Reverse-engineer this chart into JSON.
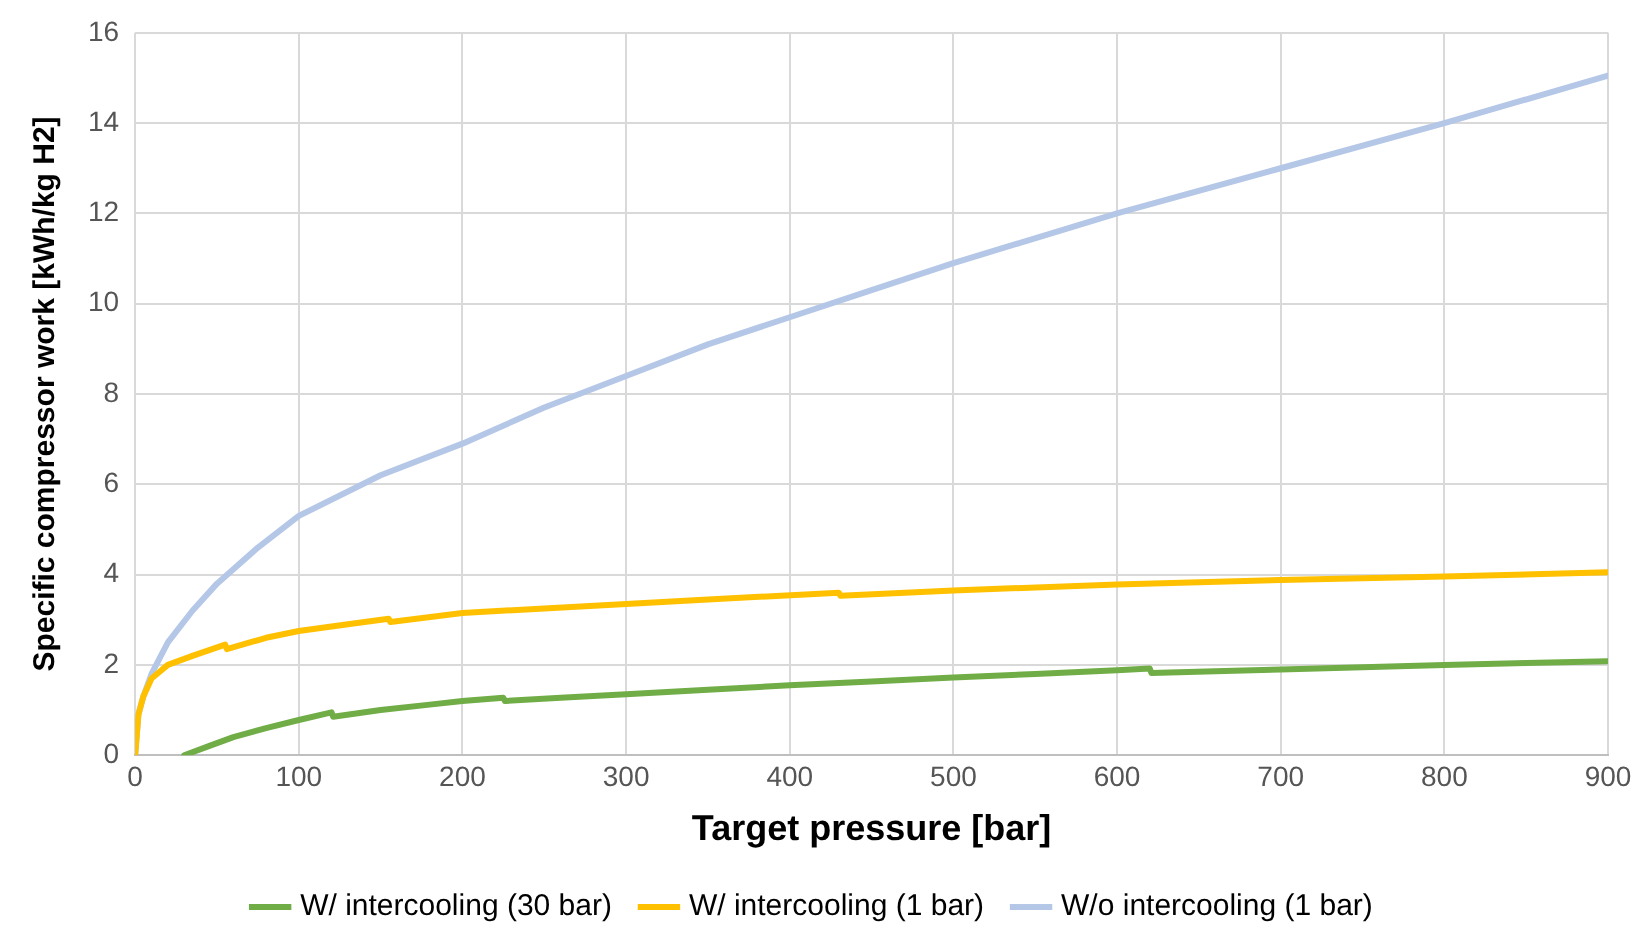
{
  "chart_data": {
    "type": "line",
    "xlabel": "Target pressure [bar]",
    "ylabel": "Specific compressor work [kWh/kg H2]",
    "xlim": [
      0,
      900
    ],
    "xticks": [
      0,
      100,
      200,
      300,
      400,
      500,
      600,
      700,
      800,
      900
    ],
    "ylim": [
      0,
      16
    ],
    "yticks": [
      0,
      2,
      4,
      6,
      8,
      10,
      12,
      14,
      16
    ],
    "grid": true,
    "legend": "bottom",
    "marker": "none",
    "line_style": "solid",
    "series": [
      {
        "name": "W/ intercooling (30 bar)",
        "color": "#70ad47",
        "x": [
          30,
          45,
          60,
          80,
          100,
          120,
          121,
          150,
          180,
          200,
          225,
          226,
          260,
          300,
          350,
          400,
          450,
          500,
          550,
          600,
          620,
          621,
          660,
          700,
          750,
          800,
          850,
          900
        ],
        "values": [
          0,
          0.2,
          0.4,
          0.6,
          0.78,
          0.95,
          0.85,
          1.0,
          1.12,
          1.2,
          1.27,
          1.2,
          1.27,
          1.35,
          1.45,
          1.55,
          1.63,
          1.72,
          1.8,
          1.88,
          1.92,
          1.82,
          1.86,
          1.9,
          1.95,
          2.0,
          2.04,
          2.08
        ]
      },
      {
        "name": "W/ intercooling (1 bar)",
        "color": "#ffc000",
        "x": [
          0,
          2,
          5,
          10,
          20,
          35,
          55,
          56,
          80,
          100,
          130,
          155,
          156,
          200,
          250,
          300,
          350,
          430,
          431,
          500,
          600,
          700,
          800,
          900
        ],
        "values": [
          0,
          0.9,
          1.3,
          1.7,
          2.0,
          2.2,
          2.45,
          2.35,
          2.6,
          2.75,
          2.9,
          3.02,
          2.95,
          3.15,
          3.25,
          3.35,
          3.45,
          3.6,
          3.53,
          3.65,
          3.78,
          3.88,
          3.96,
          4.05
        ]
      },
      {
        "name": "W/o intercooling (1 bar)",
        "color": "#b4c7e7",
        "x": [
          0,
          2,
          5,
          10,
          20,
          35,
          50,
          75,
          100,
          150,
          200,
          250,
          300,
          350,
          400,
          450,
          500,
          600,
          700,
          800,
          900
        ],
        "values": [
          0,
          0.9,
          1.3,
          1.8,
          2.5,
          3.2,
          3.8,
          4.6,
          5.3,
          6.2,
          6.9,
          7.7,
          8.4,
          9.1,
          9.7,
          10.3,
          10.9,
          12.0,
          13.0,
          14.0,
          15.05
        ]
      }
    ]
  }
}
